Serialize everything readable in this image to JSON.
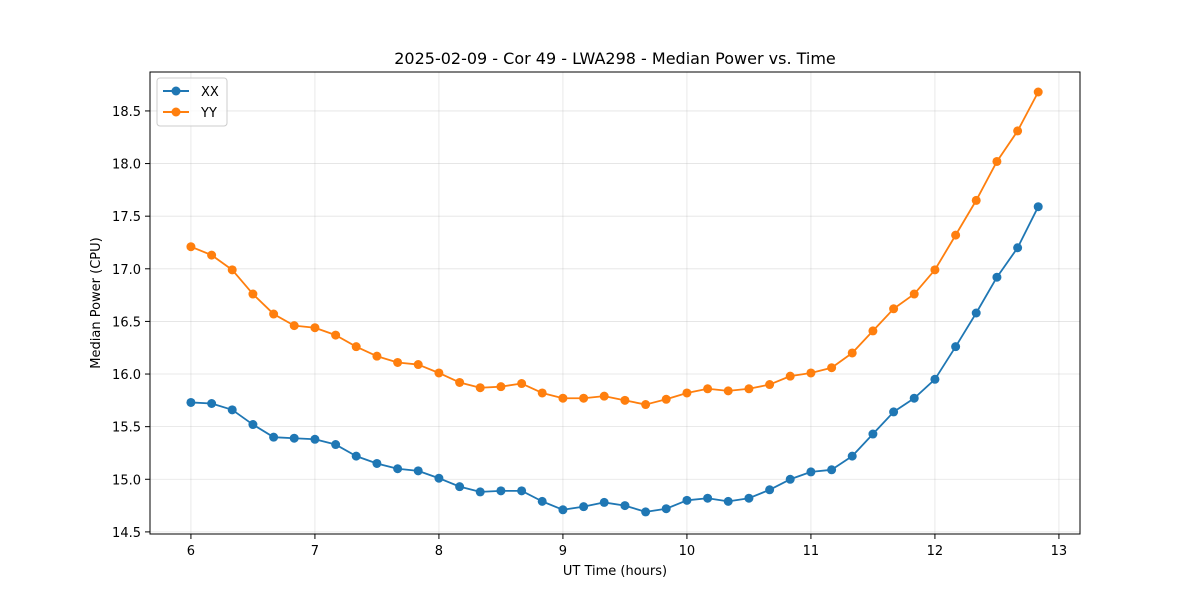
{
  "chart_data": {
    "type": "line",
    "title": "2025-02-09 - Cor 49 - LWA298 - Median Power vs. Time",
    "xlabel": "UT Time (hours)",
    "ylabel": "Median Power (CPU)",
    "xlim": [
      5.67,
      13.17
    ],
    "ylim": [
      14.48,
      18.87
    ],
    "xticks": [
      6,
      7,
      8,
      9,
      10,
      11,
      12,
      13
    ],
    "yticks": [
      14.5,
      15.0,
      15.5,
      16.0,
      16.5,
      17.0,
      17.5,
      18.0,
      18.5
    ],
    "xtick_labels": [
      "6",
      "7",
      "8",
      "9",
      "10",
      "11",
      "12",
      "13"
    ],
    "ytick_labels": [
      "14.5",
      "15.0",
      "15.5",
      "16.0",
      "16.5",
      "17.0",
      "17.5",
      "18.0",
      "18.5"
    ],
    "grid": true,
    "legend_position": "top-left",
    "x": [
      6.0,
      6.167,
      6.333,
      6.5,
      6.667,
      6.833,
      7.0,
      7.167,
      7.333,
      7.5,
      7.667,
      7.833,
      8.0,
      8.167,
      8.333,
      8.5,
      8.667,
      8.833,
      9.0,
      9.167,
      9.333,
      9.5,
      9.667,
      9.833,
      10.0,
      10.167,
      10.333,
      10.5,
      10.667,
      10.833,
      11.0,
      11.167,
      11.333,
      11.5,
      11.667,
      11.833,
      12.0,
      12.167,
      12.333,
      12.5,
      12.667,
      12.833
    ],
    "series": [
      {
        "name": "XX",
        "color": "#1f77b4",
        "values": [
          15.73,
          15.72,
          15.66,
          15.52,
          15.4,
          15.39,
          15.38,
          15.33,
          15.22,
          15.15,
          15.1,
          15.08,
          15.01,
          14.93,
          14.88,
          14.89,
          14.89,
          14.79,
          14.71,
          14.74,
          14.78,
          14.75,
          14.69,
          14.72,
          14.8,
          14.82,
          14.79,
          14.82,
          14.9,
          15.0,
          15.07,
          15.09,
          15.22,
          15.43,
          15.64,
          15.77,
          15.95,
          16.26,
          16.58,
          16.92,
          17.2,
          17.59
        ]
      },
      {
        "name": "YY",
        "color": "#ff7f0e",
        "values": [
          17.21,
          17.13,
          16.99,
          16.76,
          16.57,
          16.46,
          16.44,
          16.37,
          16.26,
          16.17,
          16.11,
          16.09,
          16.01,
          15.92,
          15.87,
          15.88,
          15.91,
          15.82,
          15.77,
          15.77,
          15.79,
          15.75,
          15.71,
          15.76,
          15.82,
          15.86,
          15.84,
          15.86,
          15.9,
          15.98,
          16.01,
          16.06,
          16.2,
          16.41,
          16.62,
          16.76,
          16.99,
          17.32,
          17.65,
          18.02,
          18.31,
          18.68
        ]
      }
    ]
  }
}
